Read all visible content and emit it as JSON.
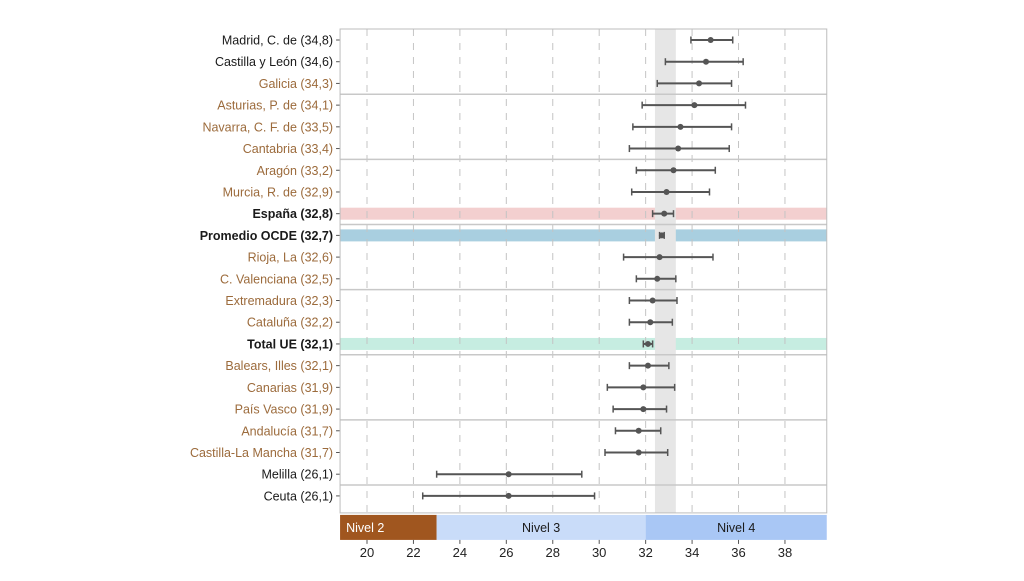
{
  "chart_data": {
    "type": "dot-errorbar",
    "orientation": "horizontal",
    "xlim": [
      18.84,
      39.8
    ],
    "x_ticks": [
      20,
      22,
      24,
      26,
      28,
      30,
      32,
      34,
      36,
      38
    ],
    "grid": "vertical dashed",
    "reference_band": [
      32.4,
      33.3
    ],
    "colors": {
      "label_default": "#1a1a1a",
      "label_region": "#9c6b3c",
      "point": "#555555",
      "reference_band": "#e6e6e6",
      "separator": "#c8c8c8"
    },
    "rows": [
      {
        "label": "Madrid, C. de (34,8)",
        "value": 34.8,
        "low": 33.95,
        "high": 35.75,
        "style": "default"
      },
      {
        "label": "Castilla y León (34,6)",
        "value": 34.6,
        "low": 32.85,
        "high": 36.2,
        "style": "default"
      },
      {
        "label": "Galicia (34,3)",
        "value": 34.3,
        "low": 32.5,
        "high": 35.7,
        "style": "region"
      },
      {
        "label": "Asturias, P. de (34,1)",
        "value": 34.1,
        "low": 31.85,
        "high": 36.3,
        "style": "region"
      },
      {
        "label": "Navarra, C. F. de (33,5)",
        "value": 33.5,
        "low": 31.45,
        "high": 35.7,
        "style": "region"
      },
      {
        "label": "Cantabria (33,4)",
        "value": 33.4,
        "low": 31.3,
        "high": 35.6,
        "style": "region"
      },
      {
        "label": "Aragón (33,2)",
        "value": 33.2,
        "low": 31.6,
        "high": 35.0,
        "style": "region"
      },
      {
        "label": "Murcia, R. de (32,9)",
        "value": 32.9,
        "low": 31.4,
        "high": 34.75,
        "style": "region"
      },
      {
        "label": "España (32,8)",
        "value": 32.8,
        "low": 32.3,
        "high": 33.2,
        "style": "bold",
        "highlight": "#f3cfcf"
      },
      {
        "label": "Promedio OCDE (32,7)",
        "value": 32.7,
        "low": 32.6,
        "high": 32.8,
        "style": "bold",
        "highlight": "#a9cfe0"
      },
      {
        "label": "Rioja, La (32,6)",
        "value": 32.6,
        "low": 31.05,
        "high": 34.9,
        "style": "region"
      },
      {
        "label": "C. Valenciana (32,5)",
        "value": 32.5,
        "low": 31.6,
        "high": 33.3,
        "style": "region"
      },
      {
        "label": "Extremadura (32,3)",
        "value": 32.3,
        "low": 31.3,
        "high": 33.35,
        "style": "region"
      },
      {
        "label": "Cataluña (32,2)",
        "value": 32.2,
        "low": 31.3,
        "high": 33.15,
        "style": "region"
      },
      {
        "label": "Total UE (32,1)",
        "value": 32.1,
        "low": 31.9,
        "high": 32.3,
        "style": "bold",
        "highlight": "#c6ede1"
      },
      {
        "label": "Balears, Illes (32,1)",
        "value": 32.1,
        "low": 31.3,
        "high": 33.0,
        "style": "region"
      },
      {
        "label": "Canarias (31,9)",
        "value": 31.9,
        "low": 30.35,
        "high": 33.25,
        "style": "region"
      },
      {
        "label": "País Vasco (31,9)",
        "value": 31.9,
        "low": 30.6,
        "high": 32.9,
        "style": "region"
      },
      {
        "label": "Andalucía (31,7)",
        "value": 31.7,
        "low": 30.7,
        "high": 32.65,
        "style": "region"
      },
      {
        "label": "Castilla-La Mancha (31,7)",
        "value": 31.7,
        "low": 30.25,
        "high": 32.95,
        "style": "region"
      },
      {
        "label": "Melilla (26,1)",
        "value": 26.1,
        "low": 23.0,
        "high": 29.25,
        "style": "default"
      },
      {
        "label": "Ceuta (26,1)",
        "value": 26.1,
        "low": 22.4,
        "high": 29.8,
        "style": "default"
      }
    ],
    "levels": [
      {
        "label": "Nivel 2",
        "from": 18.84,
        "to": 23,
        "color": "#a0561f",
        "text_color": "#ffffff"
      },
      {
        "label": "Nivel 3",
        "from": 23,
        "to": 32,
        "color": "#c9dcf9",
        "text_color": "#1a1a1a"
      },
      {
        "label": "Nivel 4",
        "from": 32,
        "to": 39.8,
        "color": "#a9c7f5",
        "text_color": "#1a1a1a"
      }
    ]
  }
}
